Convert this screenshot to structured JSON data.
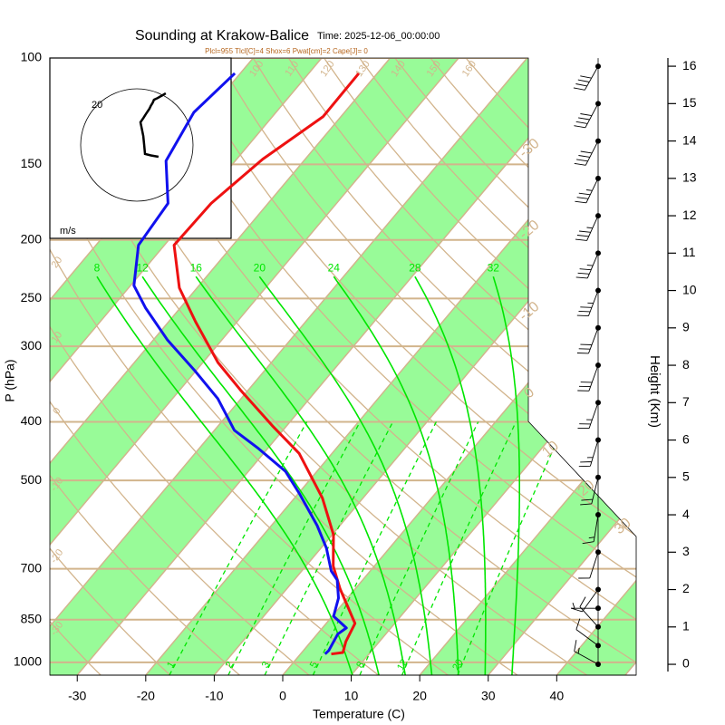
{
  "chart_data": {
    "type": "skewt",
    "title": "Sounding at Krakow-Balice",
    "time": "Time: 2025-12-06_00:00:00",
    "subtitle": "Plcl=955 Tlcl[C]=4 Shox=6 Pwat[cm]=2 Cape[J]= 0",
    "x_label": "Temperature (C)",
    "y_label": "P (hPa)",
    "y2_label": "Height (Km)",
    "xlim": [
      -34,
      51.6
    ],
    "xticks": [
      -30,
      -20,
      -10,
      0,
      10,
      20,
      30,
      40
    ],
    "ylim": [
      1050,
      100
    ],
    "y_log": true,
    "yticks": [
      100,
      150,
      200,
      250,
      300,
      400,
      500,
      700,
      850,
      1000
    ],
    "y2lim": [
      -0.29,
      16.22
    ],
    "y2ticks": [
      0,
      1,
      2,
      3,
      4,
      5,
      6,
      7,
      8,
      9,
      10,
      11,
      12,
      13,
      14,
      15,
      16
    ],
    "series": [
      {
        "color": "#ee1111",
        "pressure": [
          969,
          963,
          924,
          862,
          819,
          756,
          693,
          615,
          535,
          451,
          406,
          354,
          319,
          273,
          240,
          204,
          174,
          147,
          125,
          106
        ],
        "values": [
          4.5,
          6.0,
          5.1,
          4.2,
          1.7,
          -2.2,
          -6.0,
          -9.8,
          -15.9,
          -24.8,
          -32.1,
          -41.2,
          -47.8,
          -56.1,
          -62.6,
          -68.6,
          -68.3,
          -66.2,
          -62.6,
          -62.7
        ]
      },
      {
        "color": "#1111ee",
        "pressure": [
          969,
          956,
          898,
          877,
          839,
          783,
          731,
          706,
          647,
          594,
          526,
          483,
          443,
          413,
          366,
          330,
          293,
          259,
          238,
          204,
          174,
          148,
          123,
          106
        ],
        "values": [
          3.6,
          3.7,
          3.0,
          3.5,
          0.2,
          -1.3,
          -3.7,
          -5.7,
          -9.2,
          -13.3,
          -19.8,
          -24.6,
          -31.3,
          -37.1,
          -43.4,
          -50.0,
          -57.9,
          -65.1,
          -69.5,
          -73.8,
          -74.6,
          -80.1,
          -82.0,
          -80.8
        ]
      }
    ],
    "isotherm_labels": [
      -30,
      -20,
      -10,
      0,
      10,
      20,
      30
    ],
    "dry_adiabat_labels": [
      -30,
      -20,
      -10,
      0,
      10,
      20,
      100,
      110,
      120,
      130,
      140,
      150,
      160
    ],
    "moist_adiabat_labels": [
      8,
      12,
      16,
      20,
      24,
      28,
      32
    ],
    "mixing_ratio_labels": [
      1,
      2,
      3,
      5,
      8,
      12,
      20
    ],
    "winds": {
      "height": [
        0,
        0.5,
        1,
        1.5,
        2,
        3,
        4,
        5,
        6,
        7,
        8,
        9,
        10,
        11,
        12,
        13,
        14,
        15,
        16
      ],
      "u": [
        7.7,
        5,
        2.9,
        2.6,
        2.3,
        1.8,
        1.3,
        2.4,
        3.4,
        4.5,
        5,
        5.6,
        6.1,
        7,
        7.7,
        8.4,
        9,
        9.6,
        10.3
      ],
      "v": [
        -4.2,
        -3.7,
        -3.2,
        0,
        3.2,
        5.6,
        8.1,
        9.7,
        11.3,
        12.9,
        14,
        15,
        16.1,
        16.5,
        16.9,
        17.3,
        17.6,
        18,
        18.4
      ]
    },
    "hodograph": {
      "ring": 20,
      "unit": "m/s"
    }
  }
}
